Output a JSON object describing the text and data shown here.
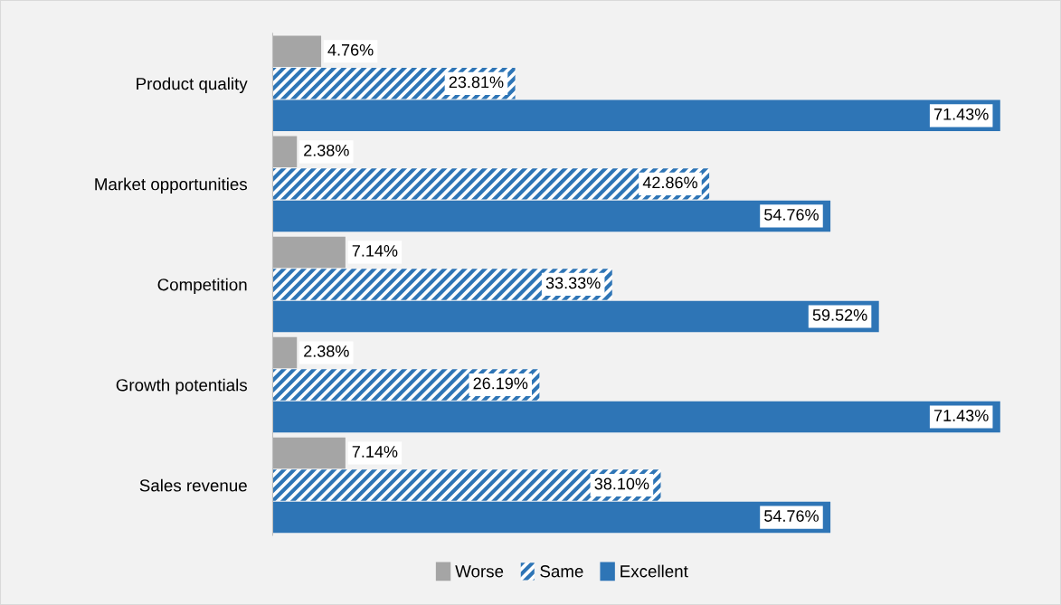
{
  "chart_data": {
    "type": "bar",
    "orientation": "horizontal",
    "categories": [
      "Product quality",
      "Market opportunities",
      "Competition",
      "Growth potentials",
      "Sales revenue"
    ],
    "series": [
      {
        "name": "Worse",
        "color": "#a5a5a5",
        "values": [
          4.76,
          2.38,
          7.14,
          2.38,
          7.14
        ],
        "value_labels": [
          "4.76%",
          "2.38%",
          "7.14%",
          "2.38%",
          "7.14%"
        ]
      },
      {
        "name": "Same",
        "color": "#2e75b6",
        "values": [
          23.81,
          42.86,
          33.33,
          26.19,
          38.1
        ],
        "value_labels": [
          "23.81%",
          "42.86%",
          "33.33%",
          "26.19%",
          "38.10%"
        ]
      },
      {
        "name": "Excellent",
        "color": "#2e75b6",
        "values": [
          71.43,
          54.76,
          59.52,
          71.43,
          54.76
        ],
        "value_labels": [
          "71.43%",
          "54.76%",
          "59.52%",
          "71.43%",
          "54.76%"
        ]
      }
    ],
    "legend": "bottom",
    "grid": false
  }
}
